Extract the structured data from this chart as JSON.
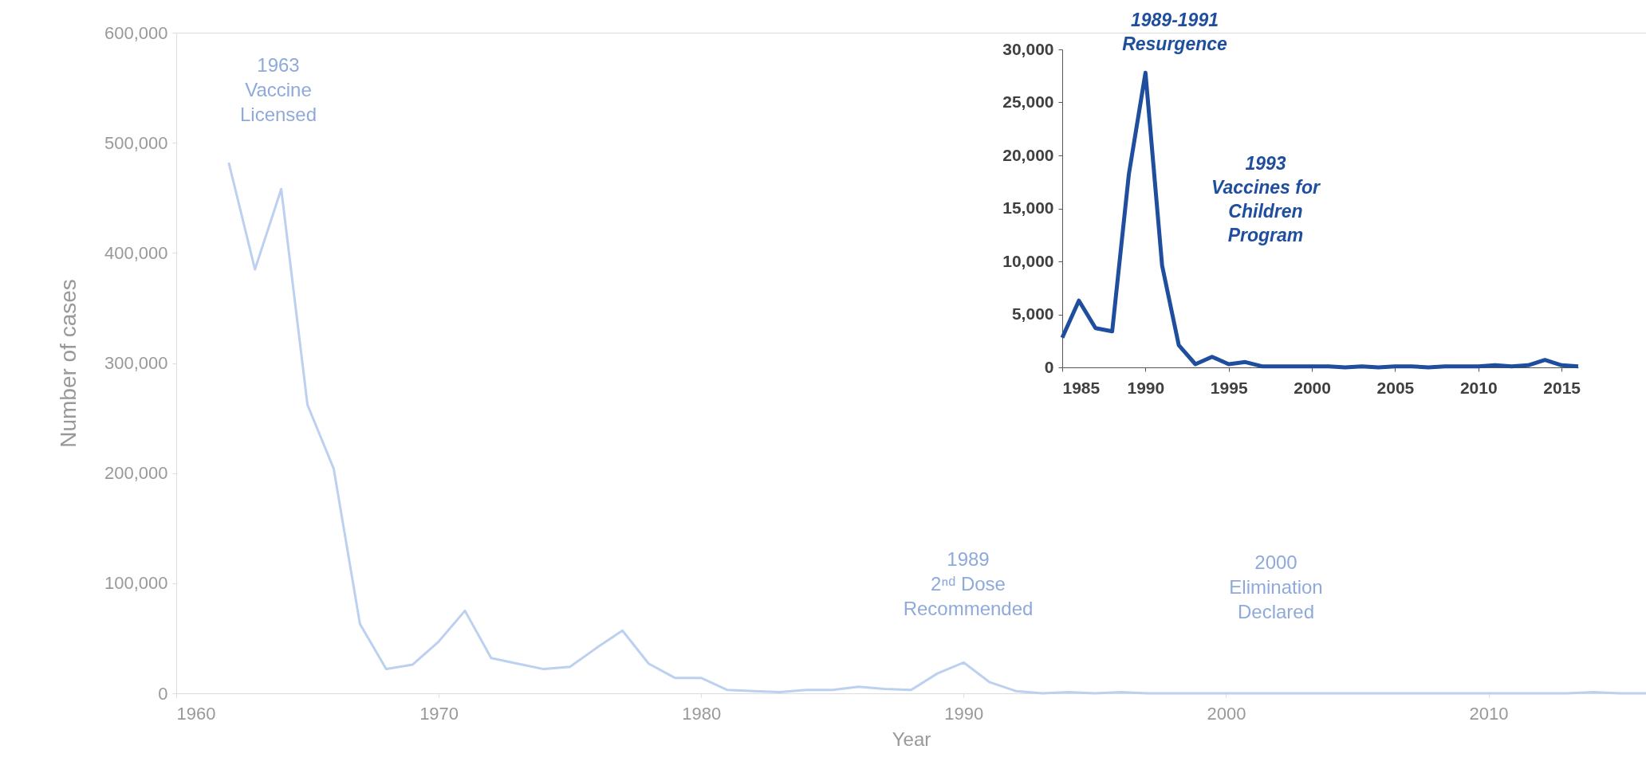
{
  "chart_data": [
    {
      "type": "line",
      "xlabel": "Year",
      "ylabel": "Number of cases",
      "x": [
        1962,
        1963,
        1964,
        1965,
        1966,
        1967,
        1968,
        1969,
        1970,
        1971,
        1972,
        1973,
        1974,
        1975,
        1976,
        1977,
        1978,
        1979,
        1980,
        1981,
        1982,
        1983,
        1984,
        1985,
        1986,
        1987,
        1988,
        1989,
        1990,
        1991,
        1992,
        1993,
        1994,
        1995,
        1996,
        1997,
        1998,
        1999,
        2000,
        2001,
        2002,
        2003,
        2004,
        2005,
        2006,
        2007,
        2008,
        2009,
        2010,
        2011,
        2012,
        2013,
        2014,
        2015,
        2016
      ],
      "series": [
        {
          "color": "#bcd0f0",
          "values": [
            482000,
            385000,
            458000,
            262000,
            204000,
            63000,
            22000,
            26000,
            47000,
            75000,
            32000,
            27000,
            22000,
            24000,
            41000,
            57000,
            27000,
            14000,
            14000,
            3000,
            2000,
            1000,
            3000,
            3000,
            6000,
            4000,
            3000,
            18000,
            28000,
            10000,
            2000,
            0,
            1000,
            0,
            1000,
            0,
            0,
            0,
            0,
            0,
            0,
            0,
            0,
            0,
            0,
            0,
            0,
            0,
            0,
            0,
            0,
            0,
            1000,
            0,
            0
          ]
        }
      ],
      "xlim": [
        1960,
        2016
      ],
      "ylim": [
        0,
        600000
      ],
      "xticks": [
        1960,
        1970,
        1980,
        1990,
        2000,
        2010
      ],
      "yticks": [
        0,
        {
          "value": 100000,
          "label": "100,000"
        },
        {
          "value": 200000,
          "label": "200,000"
        },
        {
          "value": 300000,
          "label": "300,000"
        },
        {
          "value": 400000,
          "label": "400,000"
        },
        {
          "value": 500000,
          "label": "500,000"
        },
        {
          "value": 600000,
          "label": "600,000"
        }
      ],
      "grid": false,
      "annotations": [
        "1963\nVaccine\nLicensed",
        "1989\n2ⁿᵈ Dose\nRecommended",
        "2000\nElimination\nDeclared"
      ]
    },
    {
      "type": "line",
      "x": [
        1985,
        1986,
        1987,
        1988,
        1989,
        1990,
        1991,
        1992,
        1993,
        1994,
        1995,
        1996,
        1997,
        1998,
        1999,
        2000,
        2001,
        2002,
        2003,
        2004,
        2005,
        2006,
        2007,
        2008,
        2009,
        2010,
        2011,
        2012,
        2013,
        2014,
        2015,
        2016
      ],
      "series": [
        {
          "color": "#1f4e9e",
          "values": [
            2800,
            6300,
            3700,
            3400,
            18200,
            27800,
            9600,
            2100,
            300,
            1000,
            300,
            500,
            100,
            100,
            100,
            100,
            100,
            0,
            100,
            0,
            100,
            100,
            0,
            100,
            100,
            100,
            200,
            100,
            200,
            700,
            200,
            100
          ]
        }
      ],
      "xlim": [
        1985,
        2016
      ],
      "ylim": [
        0,
        30000
      ],
      "xticks": [
        1985,
        1990,
        1995,
        2000,
        2005,
        2010,
        2015
      ],
      "yticks": [
        0,
        {
          "value": 5000,
          "label": "5,000"
        },
        {
          "value": 10000,
          "label": "10,000"
        },
        {
          "value": 15000,
          "label": "15,000"
        },
        {
          "value": 20000,
          "label": "20,000"
        },
        {
          "value": 25000,
          "label": "25,000"
        },
        {
          "value": 30000,
          "label": "30,000"
        }
      ],
      "grid": false,
      "annotations": [
        "1989-1991\nResurgence",
        "1993\nVaccines for\nChildren\nProgram"
      ]
    }
  ]
}
